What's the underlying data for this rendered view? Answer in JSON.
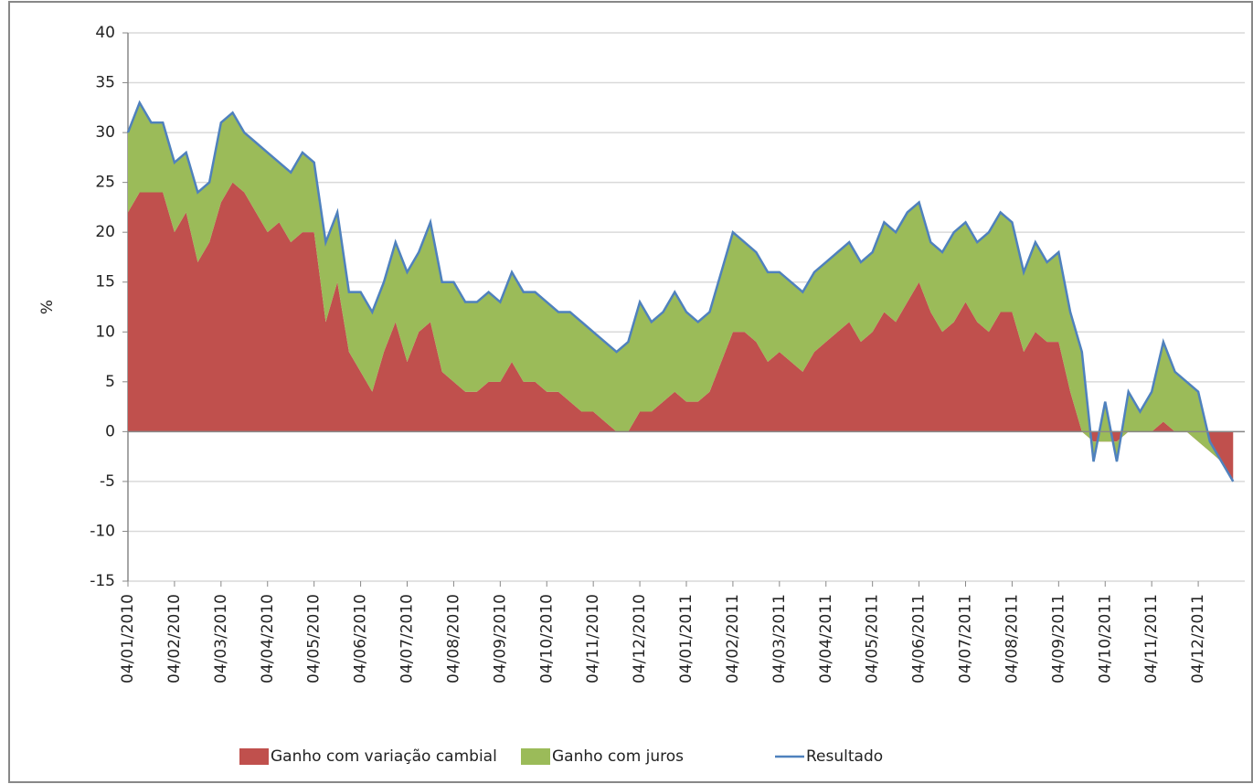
{
  "chart_data": {
    "type": "stacked-area-line",
    "y_label": "%",
    "ylim": [
      -15,
      40
    ],
    "yticks": [
      -15,
      -10,
      -5,
      0,
      5,
      10,
      15,
      20,
      25,
      30,
      35,
      40
    ],
    "grid": true,
    "legend": "bottom",
    "categories": [
      "04/01/2010",
      null,
      null,
      null,
      "04/02/2010",
      null,
      null,
      null,
      "04/03/2010",
      null,
      null,
      null,
      "04/04/2010",
      null,
      null,
      null,
      "04/05/2010",
      null,
      null,
      null,
      "04/06/2010",
      null,
      null,
      null,
      "04/07/2010",
      null,
      null,
      null,
      "04/08/2010",
      null,
      null,
      null,
      "04/09/2010",
      null,
      null,
      null,
      "04/10/2010",
      null,
      null,
      null,
      "04/11/2010",
      null,
      null,
      null,
      "04/12/2010",
      null,
      null,
      null,
      "04/01/2011",
      null,
      null,
      null,
      "04/02/2011",
      null,
      null,
      null,
      "04/03/2011",
      null,
      null,
      null,
      "04/04/2011",
      null,
      null,
      null,
      "04/05/2011",
      null,
      null,
      null,
      "04/06/2011",
      null,
      null,
      null,
      "04/07/2011",
      null,
      null,
      null,
      "04/08/2011",
      null,
      null,
      null,
      "04/09/2011",
      null,
      null,
      null,
      "04/10/2011",
      null,
      null,
      null,
      "04/11/2011",
      null,
      null,
      null,
      "04/12/2011",
      null,
      null,
      null
    ],
    "series": [
      {
        "name": "Ganho com variação cambial",
        "color": "#c0504d",
        "kind": "area",
        "values": [
          22,
          24,
          24,
          24,
          20,
          22,
          17,
          19,
          23,
          25,
          24,
          22,
          20,
          21,
          19,
          20,
          20,
          11,
          15,
          8,
          6,
          4,
          8,
          11,
          7,
          10,
          11,
          6,
          5,
          4,
          4,
          5,
          5,
          7,
          5,
          5,
          4,
          4,
          3,
          2,
          2,
          1,
          0,
          0,
          2,
          2,
          3,
          4,
          3,
          3,
          4,
          7,
          10,
          10,
          9,
          7,
          8,
          7,
          6,
          8,
          9,
          10,
          11,
          9,
          10,
          12,
          11,
          13,
          15,
          12,
          10,
          11,
          13,
          11,
          10,
          12,
          12,
          8,
          10,
          9,
          9,
          4,
          0,
          -1,
          -1,
          -1,
          0,
          0,
          0,
          1,
          0,
          0,
          -1,
          -2,
          -3,
          -5
        ]
      },
      {
        "name": "Ganho com juros",
        "color": "#9bbb59",
        "kind": "area",
        "values": [
          8,
          9,
          7,
          7,
          7,
          6,
          7,
          6,
          8,
          7,
          6,
          7,
          8,
          6,
          7,
          8,
          7,
          8,
          7,
          6,
          8,
          8,
          7,
          8,
          9,
          8,
          10,
          9,
          10,
          9,
          9,
          9,
          8,
          9,
          9,
          9,
          9,
          8,
          9,
          9,
          8,
          8,
          8,
          9,
          11,
          9,
          9,
          10,
          9,
          8,
          8,
          9,
          10,
          9,
          9,
          9,
          8,
          8,
          8,
          8,
          8,
          8,
          8,
          8,
          8,
          9,
          9,
          9,
          8,
          7,
          8,
          9,
          8,
          8,
          10,
          10,
          9,
          8,
          9,
          8,
          9,
          8,
          8,
          -2,
          4,
          -2,
          4,
          2,
          4,
          8,
          6,
          5,
          5,
          1,
          0,
          0
        ]
      },
      {
        "name": "Resultado",
        "color": "#4f81bd",
        "kind": "line",
        "values": [
          30,
          33,
          31,
          31,
          27,
          28,
          24,
          25,
          31,
          32,
          30,
          29,
          28,
          27,
          26,
          28,
          27,
          19,
          22,
          14,
          14,
          12,
          15,
          19,
          16,
          18,
          21,
          15,
          15,
          13,
          13,
          14,
          13,
          16,
          14,
          14,
          13,
          12,
          12,
          11,
          10,
          9,
          8,
          9,
          13,
          11,
          12,
          14,
          12,
          11,
          12,
          16,
          20,
          19,
          18,
          16,
          16,
          15,
          14,
          16,
          17,
          18,
          19,
          17,
          18,
          21,
          20,
          22,
          23,
          19,
          18,
          20,
          21,
          19,
          20,
          22,
          21,
          16,
          19,
          17,
          18,
          12,
          8,
          -3,
          3,
          -3,
          4,
          2,
          4,
          9,
          6,
          5,
          4,
          -1,
          -3,
          -5
        ]
      }
    ]
  }
}
